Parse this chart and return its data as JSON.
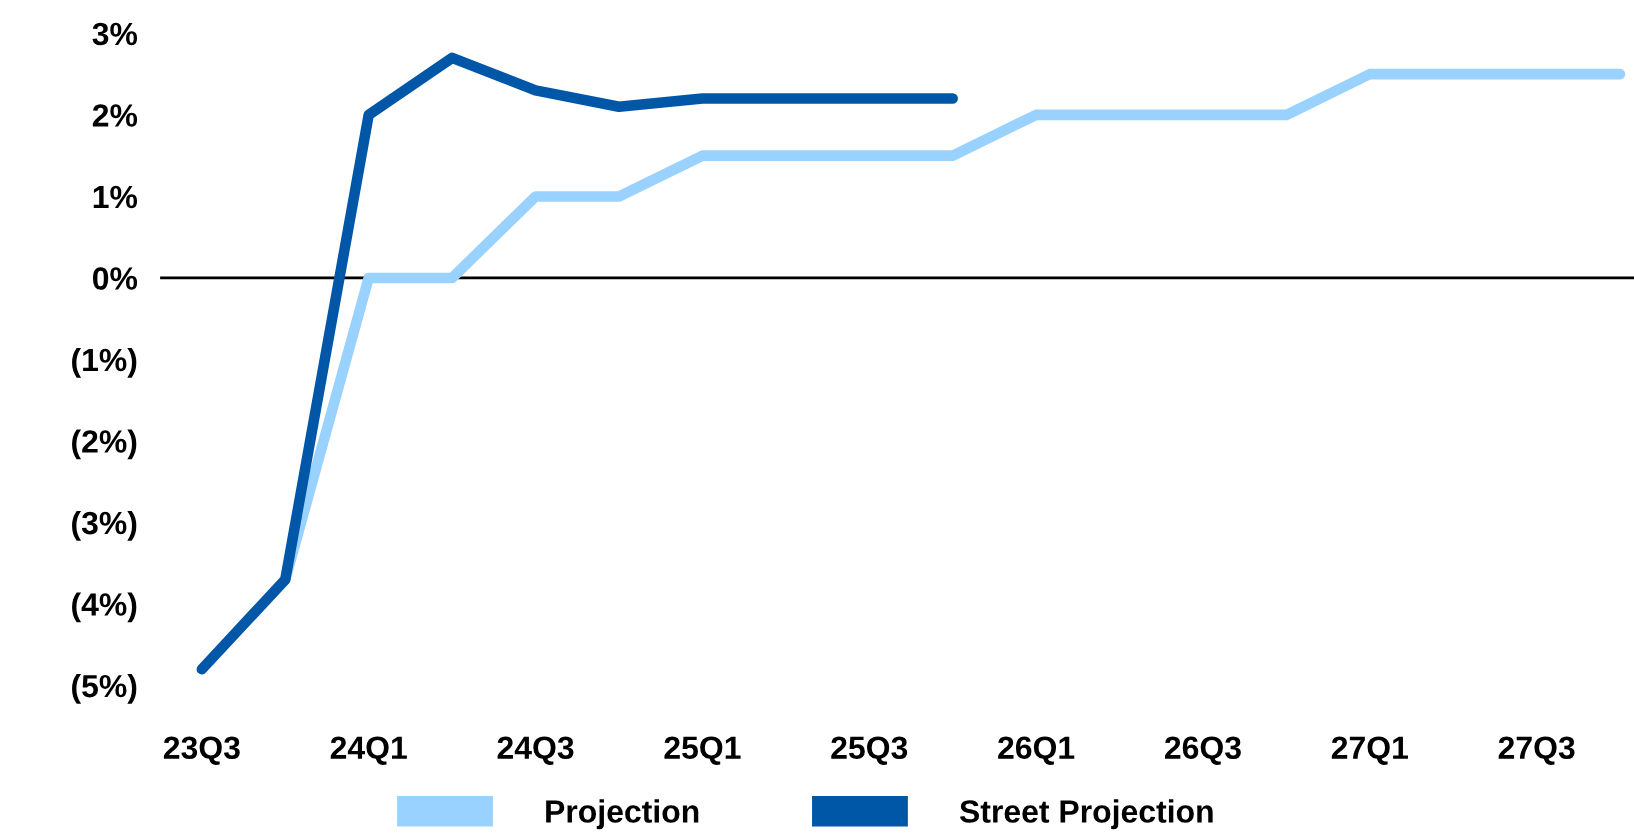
{
  "chart_data": {
    "type": "line",
    "categories": [
      "23Q3",
      null,
      "24Q1",
      null,
      "24Q3",
      null,
      "25Q1",
      null,
      "25Q3",
      null,
      "26Q1",
      null,
      "26Q3",
      null,
      "27Q1",
      null,
      "27Q3",
      null
    ],
    "series": [
      {
        "name": "Projection",
        "color": "#99d1ff",
        "values": [
          null,
          -3.7,
          0,
          0,
          1,
          1,
          1.5,
          1.5,
          1.5,
          1.5,
          2,
          2,
          2,
          2,
          2.5,
          2.5,
          2.5,
          2.5
        ]
      },
      {
        "name": "Street Projection",
        "color": "#0057a8",
        "values": [
          -4.8,
          -3.7,
          2.0,
          2.7,
          2.3,
          2.1,
          2.2,
          2.2,
          2.2,
          2.2,
          null,
          null,
          null,
          null,
          null,
          null,
          null,
          null
        ]
      }
    ],
    "ylim": [
      -5,
      3
    ],
    "yticks": [
      {
        "value": 3,
        "label": "3%"
      },
      {
        "value": 2,
        "label": "2%"
      },
      {
        "value": 1,
        "label": "1%"
      },
      {
        "value": 0,
        "label": "0%"
      },
      {
        "value": -1,
        "label": "(1%)"
      },
      {
        "value": -2,
        "label": "(2%)"
      },
      {
        "value": -3,
        "label": "(3%)"
      },
      {
        "value": -4,
        "label": "(4%)"
      },
      {
        "value": -5,
        "label": "(5%)"
      }
    ],
    "ref_lines": [
      {
        "axis": "y",
        "value": 0,
        "color": "#000000"
      }
    ],
    "grid": false,
    "legend": "bottom",
    "line_style": "solid"
  }
}
